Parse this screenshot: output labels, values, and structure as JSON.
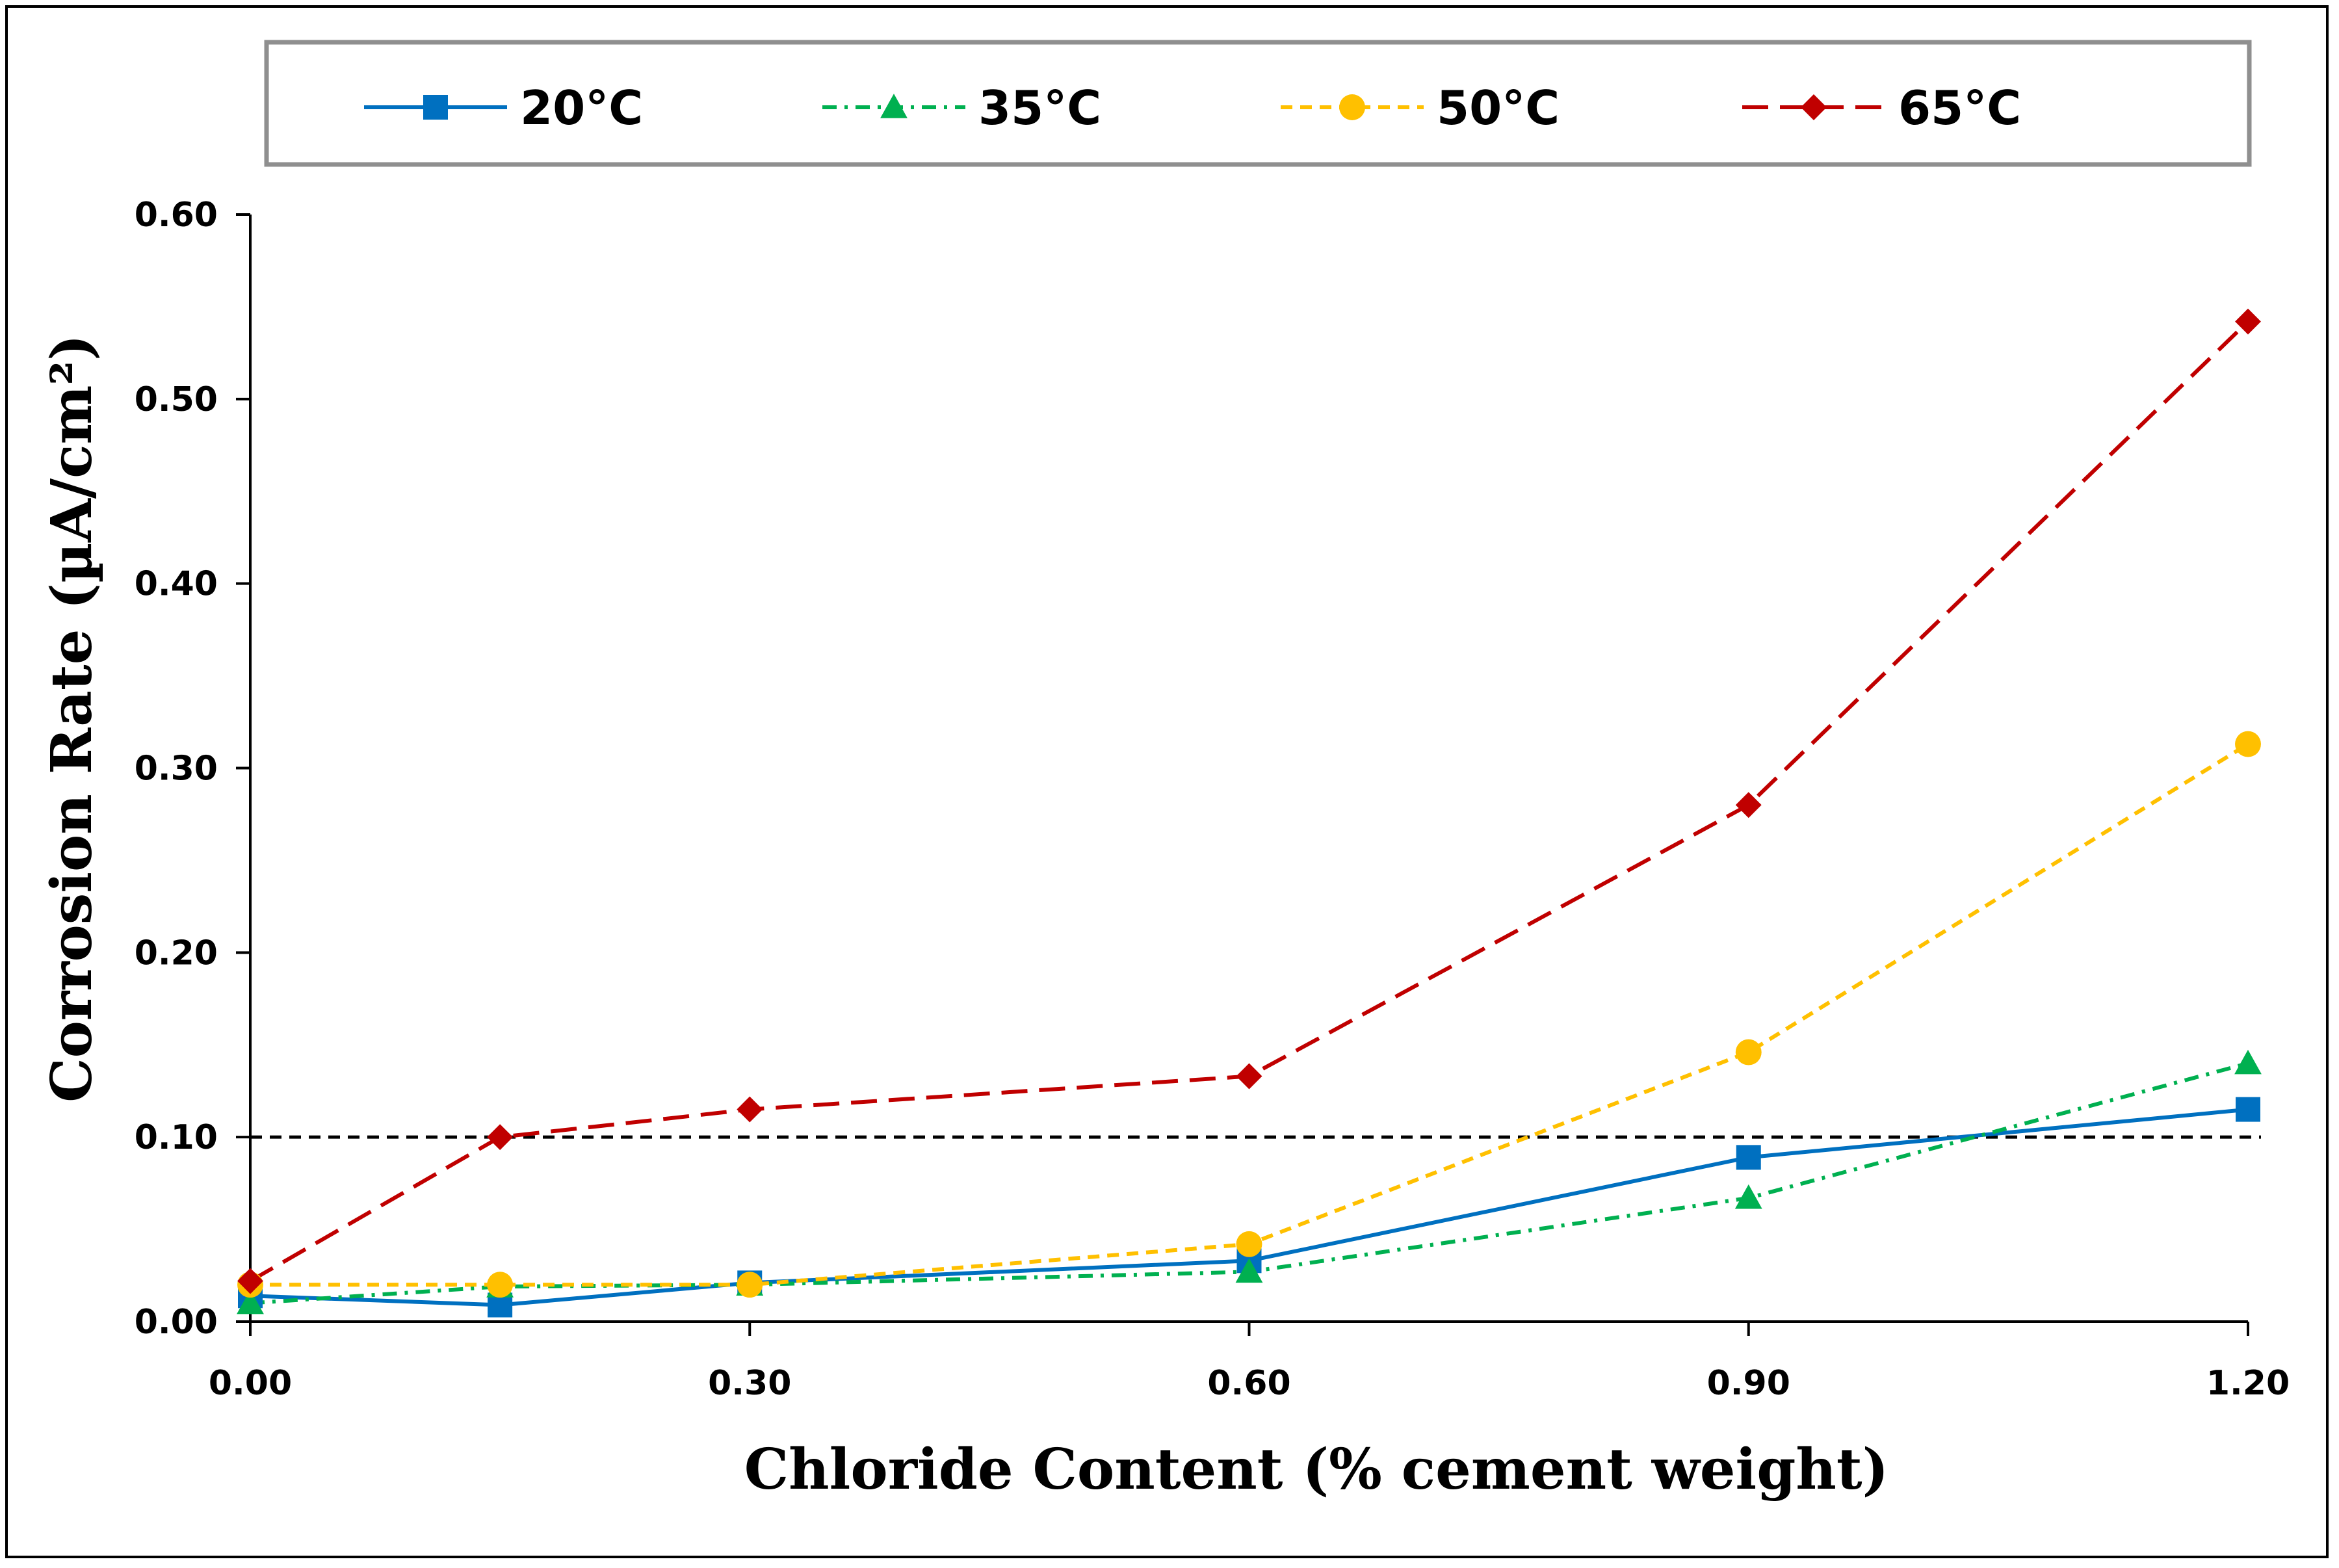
{
  "chart_data": {
    "type": "line",
    "title": "",
    "xlabel": "Chloride Content (% cement weight)",
    "ylabel": "Corrosion Rate (µA/cm²)",
    "xlim": [
      0,
      1.2
    ],
    "ylim": [
      0,
      0.6
    ],
    "xticks": [
      "0.00",
      "0.30",
      "0.60",
      "0.90",
      "1.20"
    ],
    "yticks": [
      "0.00",
      "0.10",
      "0.20",
      "0.30",
      "0.40",
      "0.50",
      "0.60"
    ],
    "grid": false,
    "legend_position": "top",
    "threshold": {
      "y": 0.1,
      "style": "dashed",
      "color": "#000000"
    },
    "series": [
      {
        "name": "20°C",
        "color": "#0070C0",
        "marker": "square",
        "dash": "solid",
        "x": [
          0,
          0.15,
          0.3,
          0.6,
          0.9,
          1.2
        ],
        "values": [
          0.014,
          0.009,
          0.021,
          0.033,
          0.089,
          0.115
        ]
      },
      {
        "name": "35°C",
        "color": "#00B050",
        "marker": "triangle",
        "dash": "dashdot",
        "x": [
          0,
          0.15,
          0.3,
          0.6,
          0.9,
          1.2
        ],
        "values": [
          0.01,
          0.019,
          0.02,
          0.027,
          0.067,
          0.14
        ]
      },
      {
        "name": "50°C",
        "color": "#FFC000",
        "marker": "circle",
        "dash": "dashed",
        "x": [
          0,
          0.15,
          0.3,
          0.6,
          0.9,
          1.2
        ],
        "values": [
          0.02,
          0.02,
          0.02,
          0.042,
          0.146,
          0.313
        ]
      },
      {
        "name": "65°C",
        "color": "#C00000",
        "marker": "diamond",
        "dash": "longdash",
        "x": [
          0,
          0.15,
          0.3,
          0.6,
          0.9,
          1.2
        ],
        "values": [
          0.022,
          0.1,
          0.115,
          0.133,
          0.28,
          0.542
        ]
      }
    ]
  }
}
